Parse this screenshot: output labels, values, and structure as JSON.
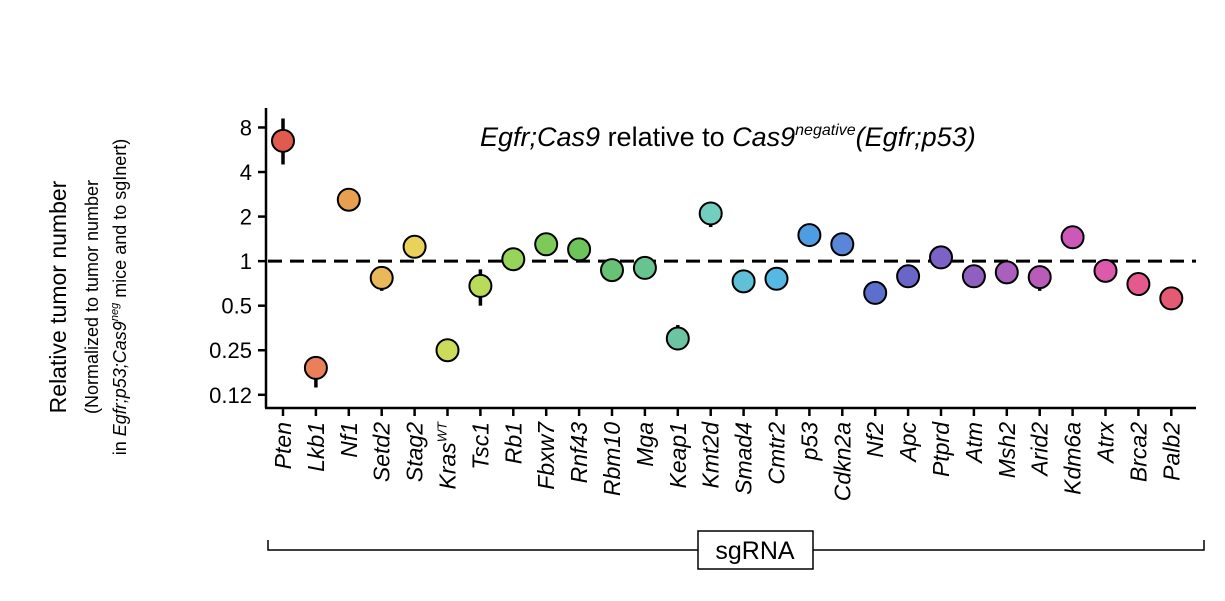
{
  "chart_data": {
    "type": "scatter",
    "title": {
      "part1_italic": "Egfr;Cas9",
      "part2": " relative to ",
      "part3_italic": "Cas9",
      "part3_sup": "negative",
      "part4_italic": "(Egfr;p53)"
    },
    "ylabel": {
      "line1": "Relative tumor number",
      "line2": "(Normalized to tumor number",
      "line3_a": "in ",
      "line3_italic": "Egfr;p53;Cas9",
      "line3_sup": "neg",
      "line3_b": " mice and to sgInert)"
    },
    "xlabel": "sgRNA",
    "y_scale": "log2",
    "ylim": [
      0.105,
      10.5
    ],
    "y_ticks": [
      {
        "value": 0.125,
        "label": "0.12"
      },
      {
        "value": 0.25,
        "label": "0.25"
      },
      {
        "value": 0.5,
        "label": "0.5"
      },
      {
        "value": 1,
        "label": "1"
      },
      {
        "value": 2,
        "label": "2"
      },
      {
        "value": 4,
        "label": "4"
      },
      {
        "value": 8,
        "label": "8"
      }
    ],
    "reference_line": 1,
    "points": [
      {
        "gene": "Pten",
        "value": 6.5,
        "ci": [
          4.5,
          9.2
        ],
        "color": "#e05a4e"
      },
      {
        "gene": "Lkb1",
        "value": 0.19,
        "ci": [
          0.14,
          0.2
        ],
        "color": "#e8805a"
      },
      {
        "gene": "Nf1",
        "value": 2.6,
        "ci": [
          2.5,
          2.7
        ],
        "color": "#e8a050"
      },
      {
        "gene": "Setd2",
        "value": 0.77,
        "ci": [
          0.63,
          0.8
        ],
        "color": "#e8b85a"
      },
      {
        "gene": "Stag2",
        "value": 1.25,
        "ci": [
          1.2,
          1.3
        ],
        "color": "#e8d25a"
      },
      {
        "gene": "Kras",
        "gene_sup": "WT",
        "value": 0.25,
        "ci": [
          0.24,
          0.26
        ],
        "color": "#ccdc5a"
      },
      {
        "gene": "Tsc1",
        "value": 0.68,
        "ci": [
          0.5,
          0.88
        ],
        "color": "#b8dc5a"
      },
      {
        "gene": "Rb1",
        "value": 1.03,
        "ci": [
          0.98,
          1.08
        ],
        "color": "#98d45a"
      },
      {
        "gene": "Fbxw7",
        "value": 1.3,
        "ci": [
          1.2,
          1.38
        ],
        "color": "#7dca58"
      },
      {
        "gene": "Rnf43",
        "value": 1.2,
        "ci": [
          1.15,
          1.25
        ],
        "color": "#6cc45a"
      },
      {
        "gene": "Rbm10",
        "value": 0.87,
        "ci": [
          0.84,
          0.9
        ],
        "color": "#68c276"
      },
      {
        "gene": "Mga",
        "value": 0.9,
        "ci": [
          0.87,
          0.93
        ],
        "color": "#68c48e"
      },
      {
        "gene": "Keap1",
        "value": 0.3,
        "ci": [
          0.25,
          0.37
        ],
        "color": "#6cc4a2"
      },
      {
        "gene": "Kmt2d",
        "value": 2.1,
        "ci": [
          1.7,
          2.15
        ],
        "color": "#74cec0"
      },
      {
        "gene": "Smad4",
        "value": 0.73,
        "ci": [
          0.7,
          0.76
        ],
        "color": "#60c0d8"
      },
      {
        "gene": "Cmtr2",
        "value": 0.76,
        "ci": [
          0.73,
          0.79
        ],
        "color": "#58b8e4"
      },
      {
        "gene": "p53",
        "value": 1.5,
        "ci": [
          1.45,
          1.55
        ],
        "color": "#4e9ce2"
      },
      {
        "gene": "Cdkn2a",
        "value": 1.3,
        "ci": [
          1.26,
          1.34
        ],
        "color": "#5a86d8"
      },
      {
        "gene": "Nf2",
        "value": 0.61,
        "ci": [
          0.59,
          0.63
        ],
        "color": "#5a70cc"
      },
      {
        "gene": "Apc",
        "value": 0.79,
        "ci": [
          0.76,
          0.82
        ],
        "color": "#6a66c8"
      },
      {
        "gene": "Ptprd",
        "value": 1.06,
        "ci": [
          1.02,
          1.1
        ],
        "color": "#7c62c4"
      },
      {
        "gene": "Atm",
        "value": 0.79,
        "ci": [
          0.76,
          0.82
        ],
        "color": "#9060c0"
      },
      {
        "gene": "Msh2",
        "value": 0.84,
        "ci": [
          0.81,
          0.87
        ],
        "color": "#a860bc"
      },
      {
        "gene": "Arid2",
        "value": 0.78,
        "ci": [
          0.63,
          0.82
        ],
        "color": "#b85cb8"
      },
      {
        "gene": "Kdm6a",
        "value": 1.45,
        "ci": [
          1.4,
          1.5
        ],
        "color": "#cc58b8"
      },
      {
        "gene": "Atrx",
        "value": 0.86,
        "ci": [
          0.83,
          0.89
        ],
        "color": "#dc5aac"
      },
      {
        "gene": "Brca2",
        "value": 0.7,
        "ci": [
          0.67,
          0.73
        ],
        "color": "#e45a8e"
      },
      {
        "gene": "Palb2",
        "value": 0.56,
        "ci": [
          0.54,
          0.58
        ],
        "color": "#e45a74"
      }
    ]
  }
}
